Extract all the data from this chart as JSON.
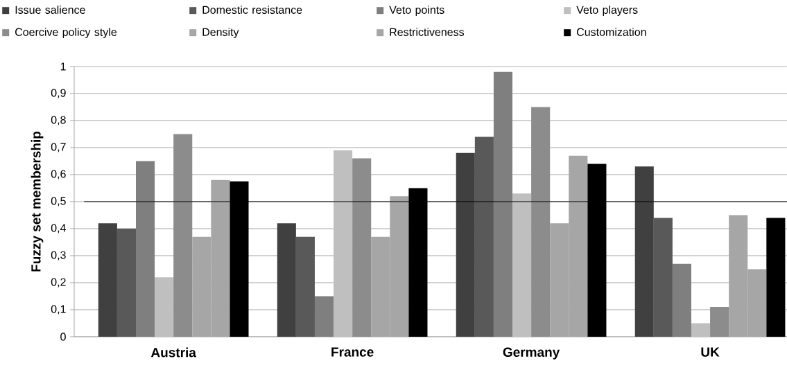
{
  "chart_data": {
    "type": "bar",
    "ylabel": "Fuzzy set membership",
    "categories": [
      "Austria",
      "France",
      "Germany",
      "UK"
    ],
    "series": [
      {
        "name": "Issue salience",
        "color": "#404040",
        "values": [
          0.42,
          0.42,
          0.68,
          0.63
        ]
      },
      {
        "name": "Domestic resistance",
        "color": "#595959",
        "values": [
          0.4,
          0.37,
          0.74,
          0.44
        ]
      },
      {
        "name": "Veto points",
        "color": "#7f7f7f",
        "values": [
          0.65,
          0.15,
          0.98,
          0.27
        ]
      },
      {
        "name": "Veto players",
        "color": "#bfbfbf",
        "values": [
          0.22,
          0.69,
          0.53,
          0.05
        ]
      },
      {
        "name": "Coercive policy style",
        "color": "#8c8c8c",
        "values": [
          0.75,
          0.66,
          0.85,
          0.11
        ]
      },
      {
        "name": "Density",
        "color": "#a6a6a6",
        "values": [
          0.37,
          0.37,
          0.42,
          0.45
        ]
      },
      {
        "name": "Restrictiveness",
        "color": "#a6a6a6",
        "values": [
          0.58,
          0.52,
          0.67,
          0.25
        ]
      },
      {
        "name": "Customization",
        "color": "#000000",
        "values": [
          0.575,
          0.55,
          0.64,
          0.44
        ]
      }
    ],
    "ylim": [
      0,
      1
    ],
    "yticks": [
      0,
      {
        "value": 0.1,
        "label": "0,1"
      },
      {
        "value": 0.2,
        "label": "0,2"
      },
      {
        "value": 0.3,
        "label": "0,3"
      },
      {
        "value": 0.4,
        "label": "0,4"
      },
      {
        "value": 0.5,
        "label": "0,5"
      },
      {
        "value": 0.6,
        "label": "0,6"
      },
      {
        "value": 0.7,
        "label": "0,7"
      },
      {
        "value": 0.8,
        "label": "0,8"
      },
      {
        "value": 0.9,
        "label": "0,9"
      },
      1
    ],
    "ref_lines": [
      {
        "axis": "y",
        "value": 0.5,
        "color": "#000000"
      }
    ],
    "grid": "y",
    "legend": "top"
  }
}
